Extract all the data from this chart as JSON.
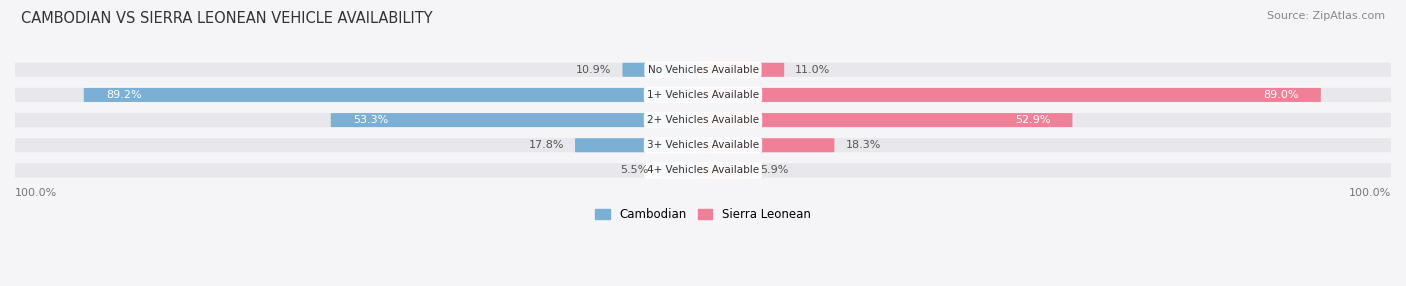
{
  "title": "CAMBODIAN VS SIERRA LEONEAN VEHICLE AVAILABILITY",
  "source": "Source: ZipAtlas.com",
  "categories": [
    "No Vehicles Available",
    "1+ Vehicles Available",
    "2+ Vehicles Available",
    "3+ Vehicles Available",
    "4+ Vehicles Available"
  ],
  "cambodian_values": [
    10.9,
    89.2,
    53.3,
    17.8,
    5.5
  ],
  "sierralonean_values": [
    11.0,
    89.0,
    52.9,
    18.3,
    5.9
  ],
  "cambodian_color": "#7BAFD4",
  "sierralonean_color": "#F08098",
  "bar_bg_color": "#E8E8EC",
  "label_color": "#555555",
  "title_color": "#333333",
  "source_color": "#888888",
  "axis_label_color": "#777777",
  "bar_height": 0.55,
  "max_value": 100.0,
  "background_color": "#F5F5F7",
  "legend_cambodian": "Cambodian",
  "legend_sierralonean": "Sierra Leonean"
}
